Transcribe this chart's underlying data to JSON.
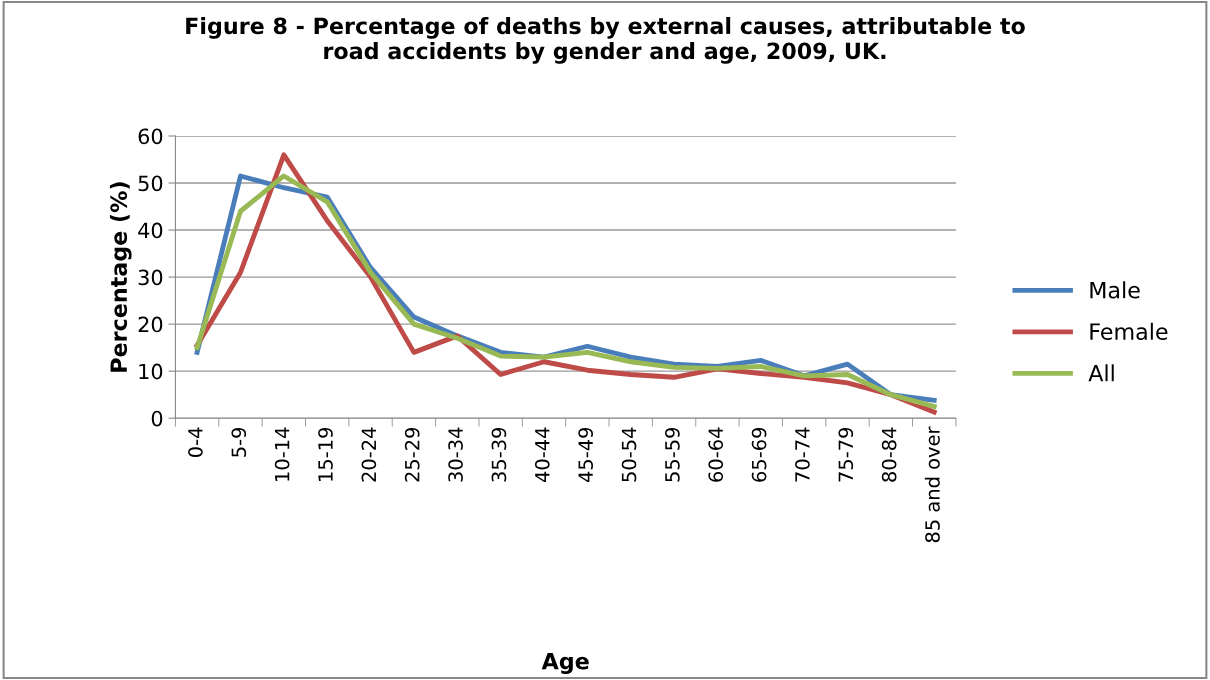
{
  "chart_data": {
    "type": "line",
    "title": "Figure 8 - Percentage of deaths by external causes, attributable to\nroad accidents by gender and age, 2009, UK.",
    "xlabel": "Age",
    "ylabel": "Percentage (%)",
    "categories": [
      "0-4",
      "5-9",
      "10-14",
      "15-19",
      "20-24",
      "25-29",
      "30-34",
      "35-39",
      "40-44",
      "45-49",
      "50-54",
      "55-59",
      "60-64",
      "65-69",
      "70-74",
      "75-79",
      "80-84",
      "85 and over"
    ],
    "series": [
      {
        "name": "Male",
        "color": "#4a7ebb",
        "values": [
          14,
          51.5,
          49,
          47,
          32,
          21.5,
          17.5,
          14,
          13,
          15.3,
          13,
          11.5,
          11,
          12.3,
          9,
          11.5,
          5,
          3.8
        ]
      },
      {
        "name": "Female",
        "color": "#be4b48",
        "values": [
          15.5,
          31,
          56,
          42,
          30,
          14,
          17.5,
          9.3,
          12,
          10.2,
          9.3,
          8.7,
          10.5,
          9.5,
          8.7,
          7.5,
          5,
          1.3
        ]
      },
      {
        "name": "All",
        "color": "#98b954",
        "values": [
          15,
          44,
          51.5,
          46,
          31,
          20,
          17,
          13.2,
          13,
          14,
          12,
          10.8,
          10.6,
          11,
          9,
          9.3,
          5,
          2.5
        ]
      }
    ],
    "ylim": [
      0,
      60
    ],
    "yticks": [
      0,
      10,
      20,
      30,
      40,
      50,
      60
    ],
    "grid": "y",
    "legend": "right",
    "marker": "none",
    "line_style": "solid"
  }
}
